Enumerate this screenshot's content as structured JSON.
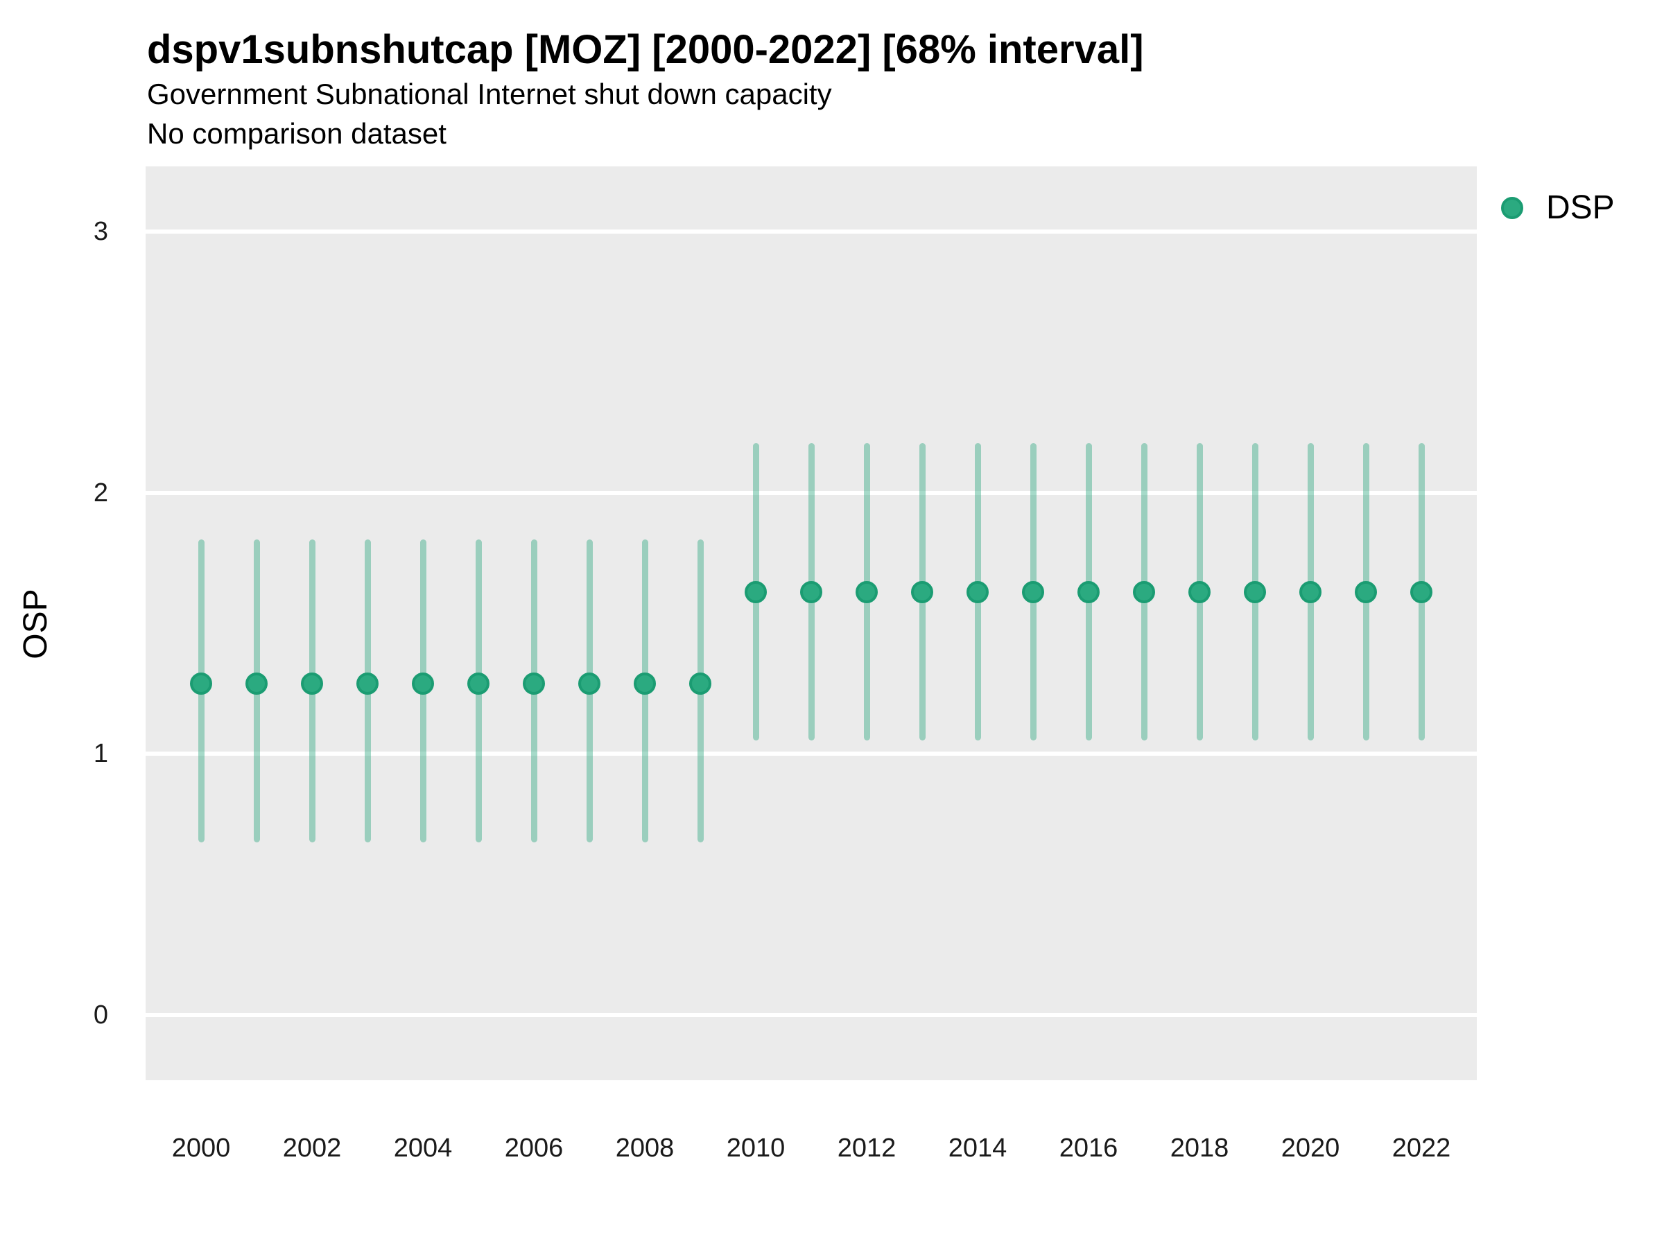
{
  "header": {
    "title": "dspv1subnshutcap [MOZ] [2000-2022] [68% interval]",
    "subtitle": "Government Subnational Internet shut down capacity",
    "note": "No comparison dataset"
  },
  "legend": {
    "items": [
      {
        "label": "DSP"
      }
    ]
  },
  "chart_data": {
    "type": "scatter",
    "title": "dspv1subnshutcap [MOZ] [2000-2022] [68% interval]",
    "subtitle": "Government Subnational Internet shut down capacity",
    "note": "No comparison dataset",
    "xlabel": "",
    "ylabel": "OSP",
    "interval_level": "68%",
    "legend_position": "right",
    "grid": "horizontal-major-only",
    "xlim": [
      1999,
      2023
    ],
    "ylim": [
      -0.25,
      3.25
    ],
    "x_ticks": [
      2000,
      2002,
      2004,
      2006,
      2008,
      2010,
      2012,
      2014,
      2016,
      2018,
      2020,
      2022
    ],
    "y_ticks": [
      0,
      1,
      2,
      3
    ],
    "series": [
      {
        "name": "DSP",
        "marker": "circle-with-interval",
        "points": [
          {
            "year": 2000,
            "value": 1.27,
            "lo": 0.66,
            "hi": 1.82
          },
          {
            "year": 2001,
            "value": 1.27,
            "lo": 0.66,
            "hi": 1.82
          },
          {
            "year": 2002,
            "value": 1.27,
            "lo": 0.66,
            "hi": 1.82
          },
          {
            "year": 2003,
            "value": 1.27,
            "lo": 0.66,
            "hi": 1.82
          },
          {
            "year": 2004,
            "value": 1.27,
            "lo": 0.66,
            "hi": 1.82
          },
          {
            "year": 2005,
            "value": 1.27,
            "lo": 0.66,
            "hi": 1.82
          },
          {
            "year": 2006,
            "value": 1.27,
            "lo": 0.66,
            "hi": 1.82
          },
          {
            "year": 2007,
            "value": 1.27,
            "lo": 0.66,
            "hi": 1.82
          },
          {
            "year": 2008,
            "value": 1.27,
            "lo": 0.66,
            "hi": 1.82
          },
          {
            "year": 2009,
            "value": 1.27,
            "lo": 0.66,
            "hi": 1.82
          },
          {
            "year": 2010,
            "value": 1.62,
            "lo": 1.05,
            "hi": 2.19
          },
          {
            "year": 2011,
            "value": 1.62,
            "lo": 1.05,
            "hi": 2.19
          },
          {
            "year": 2012,
            "value": 1.62,
            "lo": 1.05,
            "hi": 2.19
          },
          {
            "year": 2013,
            "value": 1.62,
            "lo": 1.05,
            "hi": 2.19
          },
          {
            "year": 2014,
            "value": 1.62,
            "lo": 1.05,
            "hi": 2.19
          },
          {
            "year": 2015,
            "value": 1.62,
            "lo": 1.05,
            "hi": 2.19
          },
          {
            "year": 2016,
            "value": 1.62,
            "lo": 1.05,
            "hi": 2.19
          },
          {
            "year": 2017,
            "value": 1.62,
            "lo": 1.05,
            "hi": 2.19
          },
          {
            "year": 2018,
            "value": 1.62,
            "lo": 1.05,
            "hi": 2.19
          },
          {
            "year": 2019,
            "value": 1.62,
            "lo": 1.05,
            "hi": 2.19
          },
          {
            "year": 2020,
            "value": 1.62,
            "lo": 1.05,
            "hi": 2.19
          },
          {
            "year": 2021,
            "value": 1.62,
            "lo": 1.05,
            "hi": 2.19
          },
          {
            "year": 2022,
            "value": 1.62,
            "lo": 1.05,
            "hi": 2.19
          }
        ]
      }
    ],
    "colors": {
      "point_fill": "#2baa80",
      "point_stroke": "#1b9c72",
      "interval_bar": "rgba(42, 167, 126, 0.42)",
      "panel_bg": "#ebebeb",
      "gridline": "#ffffff",
      "text": "#000000"
    }
  }
}
